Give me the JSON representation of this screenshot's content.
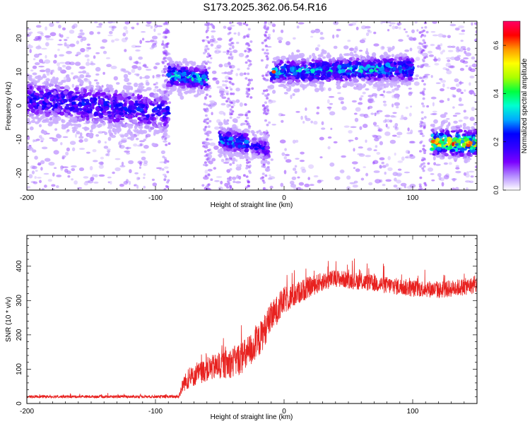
{
  "title": "S173.2025.362.06.54.R16",
  "chart_data": [
    {
      "type": "heatmap",
      "xlabel": "Height of straight line (km)",
      "ylabel": "Frequency (Hz)",
      "xlim": [
        -200,
        150
      ],
      "ylim": [
        -25,
        25
      ],
      "xticks": [
        -200,
        -100,
        0,
        100
      ],
      "yticks": [
        -20,
        -10,
        0,
        10,
        20
      ],
      "colorbar": {
        "label": "Normalized spectral amplitude",
        "range": [
          0,
          0.7
        ],
        "ticks": [
          "0.0",
          "0.2",
          "0.4",
          "0.6"
        ],
        "colors": [
          "#ffffff",
          "#b48cff",
          "#7a00ff",
          "#3300ff",
          "#0000ff",
          "#00aaff",
          "#00ffd0",
          "#00ff40",
          "#aaff00",
          "#ffff00",
          "#ff9900",
          "#ff0000",
          "#ff0066"
        ]
      },
      "bands": [
        {
          "x_range": [
            -200,
            -90
          ],
          "center_hz": [
            2,
            -2
          ],
          "spread_hz": 4,
          "peak": 0.22
        },
        {
          "x_range": [
            -90,
            -60
          ],
          "center_hz": [
            9,
            8
          ],
          "spread_hz": 2.5,
          "peak": 0.32
        },
        {
          "x_range": [
            -50,
            -28
          ],
          "center_hz": [
            -10,
            -11
          ],
          "spread_hz": 2.5,
          "peak": 0.28
        },
        {
          "x_range": [
            -25,
            -12
          ],
          "center_hz": [
            -12,
            -13
          ],
          "spread_hz": 2,
          "peak": 0.22
        },
        {
          "x_range": [
            -10,
            100
          ],
          "center_hz": [
            10,
            11
          ],
          "spread_hz": 2.5,
          "peak": 0.32
        },
        {
          "x_range": [
            115,
            150
          ],
          "center_hz": [
            -11,
            -11
          ],
          "spread_hz": 2.5,
          "peak": 0.55
        }
      ],
      "hot_spots": [
        {
          "x": -8,
          "y": 10,
          "value": 0.62
        },
        {
          "x": 145,
          "y": -11,
          "value": 0.6
        },
        {
          "x": 140,
          "y": -11.5,
          "value": 0.45
        }
      ]
    },
    {
      "type": "line",
      "xlabel": "Height of straight line (km)",
      "ylabel": "SNR (10 * v/v)",
      "xlim": [
        -200,
        150
      ],
      "ylim": [
        0,
        490
      ],
      "xticks": [
        -200,
        -100,
        0,
        100
      ],
      "yticks": [
        0,
        100,
        200,
        300,
        400
      ],
      "color": "#e8211f",
      "series": [
        {
          "name": "SNR",
          "envelope": {
            "x": [
              -200,
              -180,
              -160,
              -140,
              -120,
              -100,
              -82,
              -78,
              -70,
              -60,
              -50,
              -40,
              -30,
              -20,
              -10,
              0,
              10,
              20,
              30,
              40,
              50,
              60,
              70,
              80,
              90,
              100,
              110,
              120,
              130,
              140,
              150
            ],
            "base": [
              20,
              20,
              20,
              20,
              20,
              20,
              20,
              60,
              80,
              100,
              110,
              120,
              140,
              180,
              250,
              300,
              320,
              340,
              355,
              365,
              360,
              355,
              350,
              345,
              340,
              335,
              335,
              330,
              335,
              340,
              345
            ],
            "noise": [
              8,
              8,
              8,
              8,
              8,
              8,
              10,
              50,
              60,
              70,
              80,
              90,
              100,
              100,
              90,
              80,
              70,
              60,
              55,
              50,
              50,
              50,
              50,
              50,
              50,
              50,
              50,
              50,
              50,
              50,
              50
            ]
          }
        }
      ]
    }
  ]
}
